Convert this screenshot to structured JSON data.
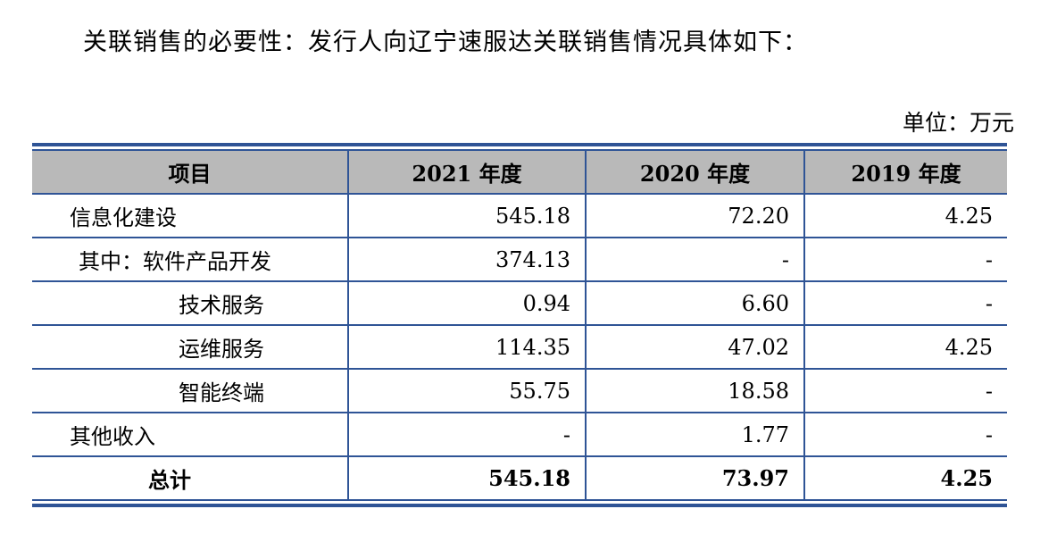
{
  "intro_text": "关联销售的必要性：发行人向辽宁速服达关联销售情况具体如下：",
  "unit_text": "单位：万元",
  "colors": {
    "rule": "#2f5496",
    "header_bg": "#b9b9b9"
  },
  "table": {
    "headers": [
      "项目",
      "2021 年度",
      "2020 年度",
      "2019 年度"
    ],
    "rows": [
      {
        "label": "信息化建设",
        "level": 0,
        "values": [
          "545.18",
          "72.20",
          "4.25"
        ]
      },
      {
        "label": "其中：软件产品开发",
        "level": 1,
        "values": [
          "374.13",
          "-",
          "-"
        ]
      },
      {
        "label": "技术服务",
        "level": 2,
        "values": [
          "0.94",
          "6.60",
          "-"
        ]
      },
      {
        "label": "运维服务",
        "level": 2,
        "values": [
          "114.35",
          "47.02",
          "4.25"
        ]
      },
      {
        "label": "智能终端",
        "level": 2,
        "values": [
          "55.75",
          "18.58",
          "-"
        ]
      },
      {
        "label": "其他收入",
        "level": 0,
        "values": [
          "-",
          "1.77",
          "-"
        ]
      }
    ],
    "total": {
      "label": "总计",
      "values": [
        "545.18",
        "73.97",
        "4.25"
      ]
    }
  }
}
